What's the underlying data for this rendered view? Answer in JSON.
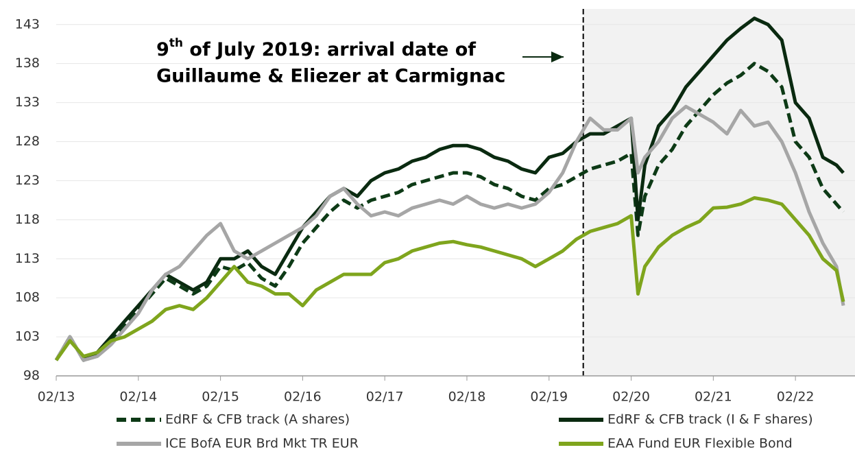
{
  "chart_data": {
    "type": "line",
    "annotation": {
      "day": "9",
      "suffix": "th",
      "line1": " of July 2019: arrival date of",
      "line2": "Guillaume & Eliezer at Carmignac",
      "date": "2019-07"
    },
    "x": [
      "2013-02",
      "2013-04",
      "2013-06",
      "2013-08",
      "2013-10",
      "2013-12",
      "2014-02",
      "2014-04",
      "2014-06",
      "2014-08",
      "2014-10",
      "2014-12",
      "2015-02",
      "2015-04",
      "2015-06",
      "2015-08",
      "2015-10",
      "2015-12",
      "2016-02",
      "2016-04",
      "2016-06",
      "2016-08",
      "2016-10",
      "2016-12",
      "2017-02",
      "2017-04",
      "2017-06",
      "2017-08",
      "2017-10",
      "2017-12",
      "2018-02",
      "2018-04",
      "2018-06",
      "2018-08",
      "2018-10",
      "2018-12",
      "2019-02",
      "2019-04",
      "2019-06",
      "2019-08",
      "2019-10",
      "2019-12",
      "2020-02",
      "2020-03",
      "2020-04",
      "2020-06",
      "2020-08",
      "2020-10",
      "2020-12",
      "2021-02",
      "2021-04",
      "2021-06",
      "2021-08",
      "2021-10",
      "2021-12",
      "2022-02",
      "2022-04",
      "2022-06",
      "2022-08",
      "2022-09"
    ],
    "series": [
      {
        "name": "EdRF & CFB track (A shares)",
        "color": "#0d3a16",
        "dash": true,
        "values": [
          100,
          103,
          100,
          101,
          102.5,
          104.5,
          106.5,
          108.5,
          110.5,
          109.5,
          108.5,
          109.5,
          112,
          111.5,
          112.5,
          110.5,
          109.5,
          112,
          115,
          117,
          119,
          120.5,
          119.5,
          120.5,
          121,
          121.5,
          122.5,
          123,
          123.5,
          124,
          124,
          123.5,
          122.5,
          122,
          121,
          120.5,
          122,
          122.5,
          123.5,
          124.5,
          125,
          125.5,
          126.5,
          116,
          121,
          125,
          127,
          130,
          132,
          134,
          135.5,
          136.5,
          138,
          137,
          135,
          128,
          126,
          122,
          120,
          119
        ]
      },
      {
        "name": "EdRF & CFB track (I & F shares)",
        "color": "#0a2a10",
        "dash": false,
        "values": [
          100,
          103,
          100,
          101,
          103,
          105,
          107,
          109,
          111,
          110,
          109,
          110,
          113,
          113,
          114,
          112,
          111,
          114,
          117,
          119,
          121,
          122,
          121,
          123,
          124,
          124.5,
          125.5,
          126,
          127,
          127.5,
          127.5,
          127,
          126,
          125.5,
          124.5,
          124,
          126,
          126.5,
          128,
          129,
          129,
          130,
          131,
          118,
          125,
          130,
          132,
          135,
          137,
          139,
          141,
          142.5,
          143.8,
          143,
          141,
          133,
          131,
          126,
          125,
          124
        ]
      },
      {
        "name": "ICE BofA EUR Brd Mkt TR EUR",
        "color": "#a6a6a6",
        "dash": false,
        "values": [
          100,
          103,
          100,
          100.5,
          102,
          104,
          106,
          109,
          111,
          112,
          114,
          116,
          117.5,
          114,
          113,
          114,
          115,
          116,
          117,
          118.5,
          121,
          122,
          120,
          118.5,
          119,
          118.5,
          119.5,
          120,
          120.5,
          120,
          121,
          120,
          119.5,
          120,
          119.5,
          120,
          121.5,
          124,
          128,
          131,
          129.5,
          129.5,
          131,
          124,
          126,
          128,
          131,
          132.5,
          131.5,
          130.5,
          129,
          132,
          130,
          130.5,
          128,
          124,
          119,
          115,
          112,
          107
        ]
      },
      {
        "name": "EAA Fund EUR Flexible Bond",
        "color": "#7fa51d",
        "dash": false,
        "values": [
          100,
          102.5,
          100.5,
          101,
          102.5,
          103,
          104,
          105,
          106.5,
          107,
          106.5,
          108,
          110,
          112,
          110,
          109.5,
          108.5,
          108.5,
          107,
          109,
          110,
          111,
          111,
          111,
          112.5,
          113,
          114,
          114.5,
          115,
          115.2,
          114.8,
          114.5,
          114,
          113.5,
          113,
          112,
          113,
          114,
          115.5,
          116.5,
          117,
          117.5,
          118.5,
          108.5,
          112,
          114.5,
          116,
          117,
          117.8,
          119.5,
          119.6,
          120,
          120.8,
          120.5,
          120,
          118,
          116,
          113,
          111.5,
          107.5
        ]
      }
    ],
    "xlim": [
      "2013-02",
      "2022-10"
    ],
    "xticks": [
      {
        "value": "2013-02",
        "label": "02/13"
      },
      {
        "value": "2014-02",
        "label": "02/14"
      },
      {
        "value": "2015-02",
        "label": "02/15"
      },
      {
        "value": "2016-02",
        "label": "02/16"
      },
      {
        "value": "2017-02",
        "label": "02/17"
      },
      {
        "value": "2018-02",
        "label": "02/18"
      },
      {
        "value": "2019-02",
        "label": "02/19"
      },
      {
        "value": "2020-02",
        "label": "02/20"
      },
      {
        "value": "2021-02",
        "label": "02/21"
      },
      {
        "value": "2022-02",
        "label": "02/22"
      }
    ],
    "ylim": [
      98,
      145
    ],
    "yticks": [
      98,
      103,
      108,
      113,
      118,
      123,
      128,
      133,
      138,
      143
    ],
    "grid": true
  }
}
